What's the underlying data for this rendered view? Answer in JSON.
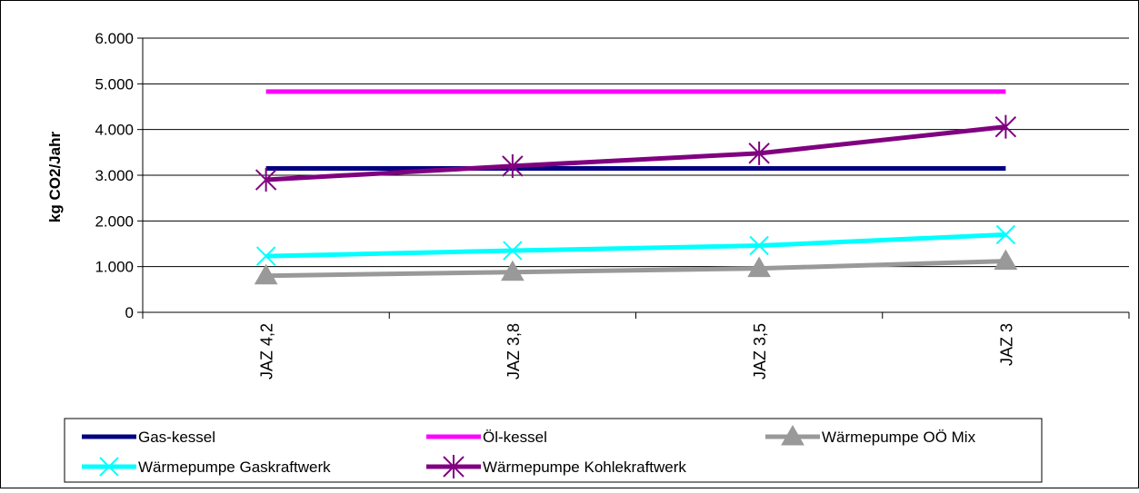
{
  "chart_data": {
    "type": "line",
    "title": "",
    "xlabel": "",
    "ylabel": "kg CO2/Jahr",
    "categories": [
      "JAZ 4,2",
      "JAZ 3,8",
      "JAZ 3,5",
      "JAZ 3"
    ],
    "ylim": [
      0,
      6000
    ],
    "yticks": [
      0,
      1000,
      2000,
      3000,
      4000,
      5000,
      6000
    ],
    "ytick_labels": [
      "0",
      "1.000",
      "2.000",
      "3.000",
      "4.000",
      "5.000",
      "6.000"
    ],
    "grid": true,
    "legend_position": "bottom",
    "series": [
      {
        "name": "Gas-kessel",
        "color": "#000080",
        "marker": "none",
        "values": [
          3150,
          3150,
          3150,
          3150
        ]
      },
      {
        "name": "Öl-kessel",
        "color": "#ff00ff",
        "marker": "none",
        "values": [
          4830,
          4830,
          4830,
          4830
        ]
      },
      {
        "name": "Wärmepumpe OÖ Mix",
        "color": "#999999",
        "marker": "triangle",
        "values": [
          800,
          880,
          960,
          1120
        ]
      },
      {
        "name": "Wärmepumpe Gaskraftwerk",
        "color": "#00ffff",
        "marker": "x",
        "values": [
          1230,
          1350,
          1460,
          1700
        ]
      },
      {
        "name": "Wärmepumpe Kohlekraftwerk",
        "color": "#800080",
        "marker": "star",
        "values": [
          2900,
          3200,
          3480,
          4060
        ]
      }
    ]
  }
}
